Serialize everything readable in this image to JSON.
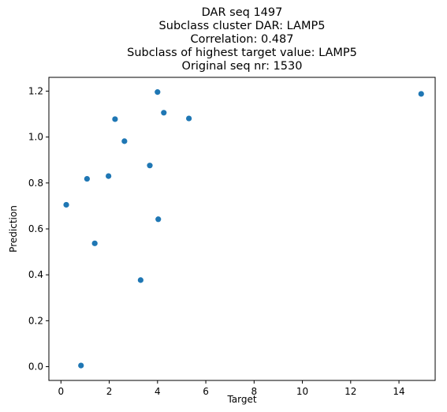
{
  "chart_data": {
    "type": "scatter",
    "title_lines": [
      "DAR seq 1497",
      "Subclass cluster DAR: LAMP5",
      "Correlation: 0.487",
      "Subclass of highest target value: LAMP5",
      "Original seq nr: 1530"
    ],
    "xlabel": "Target",
    "ylabel": "Prediction",
    "xlim": [
      -0.5,
      15.5
    ],
    "ylim": [
      -0.06,
      1.26
    ],
    "xticks": [
      0,
      2,
      4,
      6,
      8,
      10,
      12,
      14
    ],
    "yticks": [
      0.0,
      0.2,
      0.4,
      0.6,
      0.8,
      1.0,
      1.2
    ],
    "ytick_labels": [
      "0.0",
      "0.2",
      "0.4",
      "0.6",
      "0.8",
      "1.0",
      "1.2"
    ],
    "marker_color": "#1f77b4",
    "grid": false,
    "points": [
      {
        "x": 0.22,
        "y": 0.705
      },
      {
        "x": 0.83,
        "y": 0.005
      },
      {
        "x": 1.08,
        "y": 0.818
      },
      {
        "x": 1.4,
        "y": 0.537
      },
      {
        "x": 1.97,
        "y": 0.83
      },
      {
        "x": 2.24,
        "y": 1.078
      },
      {
        "x": 2.63,
        "y": 0.982
      },
      {
        "x": 3.3,
        "y": 0.377
      },
      {
        "x": 3.68,
        "y": 0.876
      },
      {
        "x": 4.0,
        "y": 1.196
      },
      {
        "x": 4.03,
        "y": 0.642
      },
      {
        "x": 4.26,
        "y": 1.106
      },
      {
        "x": 5.3,
        "y": 1.081
      },
      {
        "x": 14.92,
        "y": 1.188
      }
    ]
  }
}
